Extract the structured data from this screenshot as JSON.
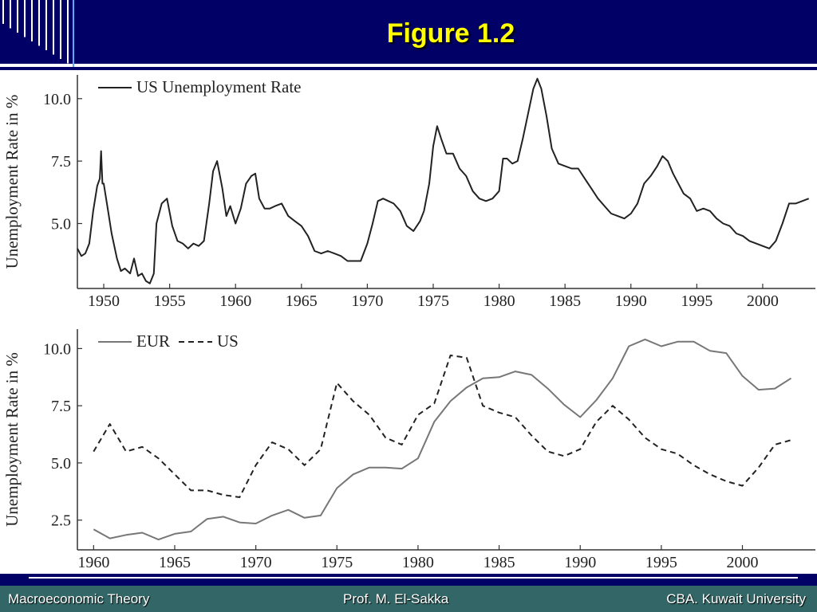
{
  "slide": {
    "title": "Figure 1.2",
    "footer_left": "Macroeconomic Theory",
    "footer_center": "Prof. M. El-Sakka",
    "footer_right": "CBA. Kuwait University",
    "colors": {
      "header": "#000066",
      "title": "#ffff00",
      "footer_bar": "#336666"
    }
  },
  "chart_data": [
    {
      "type": "line",
      "ylabel": "Unemployment Rate in %",
      "xlabel": "",
      "xlim": [
        1948,
        2004
      ],
      "ylim": [
        2.4,
        10.95
      ],
      "x_ticks": [
        "1950",
        "1955",
        "1960",
        "1965",
        "1970",
        "1975",
        "1980",
        "1985",
        "1990",
        "1995",
        "2000"
      ],
      "y_ticks": [
        "5.0",
        "7.5",
        "10.0"
      ],
      "legend": "top-left",
      "series": [
        {
          "name": "US Unemployment Rate",
          "style": "solid",
          "color": "#222222",
          "x": [
            1948.0,
            1948.3,
            1948.6,
            1948.9,
            1949.2,
            1949.5,
            1949.7,
            1949.8,
            1949.9,
            1950.0,
            1950.3,
            1950.6,
            1951.0,
            1951.3,
            1951.6,
            1952.0,
            1952.3,
            1952.6,
            1952.9,
            1953.2,
            1953.5,
            1953.8,
            1954.0,
            1954.4,
            1954.8,
            1955.2,
            1955.6,
            1956.0,
            1956.4,
            1956.8,
            1957.2,
            1957.6,
            1958.0,
            1958.3,
            1958.6,
            1959.0,
            1959.3,
            1959.6,
            1960.0,
            1960.4,
            1960.8,
            1961.2,
            1961.5,
            1961.8,
            1962.2,
            1962.6,
            1963.0,
            1963.5,
            1964.0,
            1964.5,
            1965.0,
            1965.5,
            1966.0,
            1966.5,
            1967.0,
            1967.5,
            1968.0,
            1968.5,
            1969.0,
            1969.5,
            1970.0,
            1970.4,
            1970.8,
            1971.2,
            1971.6,
            1972.0,
            1972.5,
            1973.0,
            1973.5,
            1974.0,
            1974.3,
            1974.7,
            1975.0,
            1975.3,
            1975.6,
            1976.0,
            1976.5,
            1977.0,
            1977.5,
            1978.0,
            1978.5,
            1979.0,
            1979.5,
            1980.0,
            1980.3,
            1980.6,
            1981.0,
            1981.4,
            1981.8,
            1982.2,
            1982.6,
            1982.9,
            1983.2,
            1983.6,
            1984.0,
            1984.5,
            1985.0,
            1985.5,
            1986.0,
            1986.5,
            1987.0,
            1987.5,
            1988.0,
            1988.5,
            1989.0,
            1989.5,
            1990.0,
            1990.5,
            1991.0,
            1991.5,
            1992.0,
            1992.4,
            1992.8,
            1993.2,
            1993.6,
            1994.0,
            1994.5,
            1995.0,
            1995.5,
            1996.0,
            1996.5,
            1997.0,
            1997.5,
            1998.0,
            1998.5,
            1999.0,
            1999.5,
            2000.0,
            2000.5,
            2001.0,
            2001.5,
            2002.0,
            2002.5,
            2003.0,
            2003.5
          ],
          "values": [
            4.0,
            3.7,
            3.8,
            4.2,
            5.5,
            6.5,
            6.8,
            7.9,
            6.6,
            6.6,
            5.6,
            4.6,
            3.6,
            3.1,
            3.2,
            3.0,
            3.6,
            2.9,
            3.0,
            2.7,
            2.6,
            3.0,
            5.0,
            5.8,
            6.0,
            4.9,
            4.3,
            4.2,
            4.0,
            4.2,
            4.1,
            4.3,
            5.8,
            7.1,
            7.5,
            6.4,
            5.3,
            5.7,
            5.0,
            5.6,
            6.6,
            6.9,
            7.0,
            6.0,
            5.6,
            5.6,
            5.7,
            5.8,
            5.3,
            5.1,
            4.9,
            4.5,
            3.9,
            3.8,
            3.9,
            3.8,
            3.7,
            3.5,
            3.5,
            3.5,
            4.2,
            5.0,
            5.9,
            6.0,
            5.9,
            5.8,
            5.5,
            4.9,
            4.7,
            5.1,
            5.5,
            6.6,
            8.1,
            8.9,
            8.4,
            7.8,
            7.8,
            7.2,
            6.9,
            6.3,
            6.0,
            5.9,
            6.0,
            6.3,
            7.6,
            7.6,
            7.4,
            7.5,
            8.4,
            9.4,
            10.4,
            10.8,
            10.4,
            9.3,
            8.0,
            7.4,
            7.3,
            7.2,
            7.2,
            6.8,
            6.4,
            6.0,
            5.7,
            5.4,
            5.3,
            5.2,
            5.4,
            5.8,
            6.6,
            6.9,
            7.3,
            7.7,
            7.5,
            7.0,
            6.6,
            6.2,
            6.0,
            5.5,
            5.6,
            5.5,
            5.2,
            5.0,
            4.9,
            4.6,
            4.5,
            4.3,
            4.2,
            4.1,
            4.0,
            4.3,
            5.0,
            5.8,
            5.8,
            5.9,
            6.0
          ]
        }
      ]
    },
    {
      "type": "line",
      "ylabel": "Unemployment Rate in %",
      "xlabel": "",
      "xlim": [
        1959,
        2004.5
      ],
      "ylim": [
        1.2,
        10.85
      ],
      "x_ticks": [
        "1960",
        "1965",
        "1970",
        "1975",
        "1980",
        "1985",
        "1990",
        "1995",
        "2000"
      ],
      "y_ticks": [
        "2.5",
        "5.0",
        "7.5",
        "10.0"
      ],
      "legend": "top-left",
      "series": [
        {
          "name": "EUR",
          "style": "solid",
          "color": "#777777",
          "x": [
            1960,
            1961,
            1962,
            1963,
            1964,
            1965,
            1966,
            1967,
            1968,
            1969,
            1970,
            1971,
            1972,
            1973,
            1974,
            1975,
            1976,
            1977,
            1978,
            1979,
            1980,
            1981,
            1982,
            1983,
            1984,
            1985,
            1986,
            1987,
            1988,
            1989,
            1990,
            1991,
            1992,
            1993,
            1994,
            1995,
            1996,
            1997,
            1998,
            1999,
            2000,
            2001,
            2002,
            2003
          ],
          "values": [
            2.1,
            1.7,
            1.85,
            1.95,
            1.65,
            1.9,
            2.0,
            2.55,
            2.65,
            2.4,
            2.35,
            2.7,
            2.95,
            2.6,
            2.7,
            3.9,
            4.5,
            4.8,
            4.8,
            4.75,
            5.2,
            6.8,
            7.7,
            8.3,
            8.7,
            8.75,
            9.0,
            8.85,
            8.25,
            7.55,
            7.0,
            7.75,
            8.7,
            10.1,
            10.4,
            10.1,
            10.3,
            10.3,
            9.9,
            9.8,
            8.8,
            8.2,
            8.25,
            8.7
          ]
        },
        {
          "name": "US",
          "style": "dashed",
          "color": "#222222",
          "x": [
            1960,
            1961,
            1962,
            1963,
            1964,
            1965,
            1966,
            1967,
            1968,
            1969,
            1970,
            1971,
            1972,
            1973,
            1974,
            1975,
            1976,
            1977,
            1978,
            1979,
            1980,
            1981,
            1982,
            1983,
            1984,
            1985,
            1986,
            1987,
            1988,
            1989,
            1990,
            1991,
            1992,
            1993,
            1994,
            1995,
            1996,
            1997,
            1998,
            1999,
            2000,
            2001,
            2002,
            2003
          ],
          "values": [
            5.5,
            6.7,
            5.5,
            5.7,
            5.2,
            4.5,
            3.8,
            3.8,
            3.6,
            3.5,
            4.9,
            5.9,
            5.6,
            4.9,
            5.6,
            8.5,
            7.7,
            7.1,
            6.1,
            5.8,
            7.1,
            7.6,
            9.7,
            9.6,
            7.5,
            7.2,
            7.0,
            6.2,
            5.5,
            5.3,
            5.6,
            6.8,
            7.5,
            6.9,
            6.1,
            5.6,
            5.4,
            4.9,
            4.5,
            4.2,
            4.0,
            4.8,
            5.8,
            6.0
          ]
        }
      ]
    }
  ]
}
